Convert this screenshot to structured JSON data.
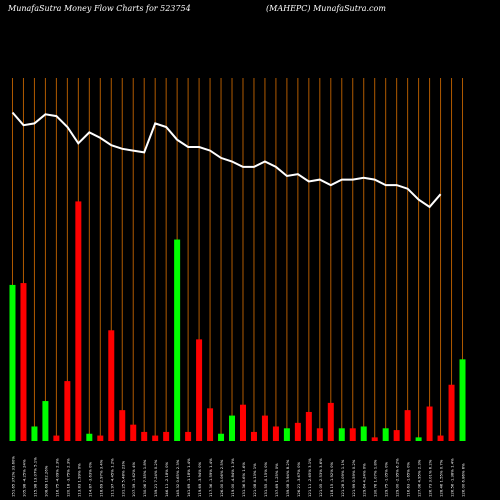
{
  "header": {
    "left": "MunafaSutra  Money Flow  Charts for 523754",
    "right": "(MAHEPC) MunafaSutra.com"
  },
  "colors": {
    "background": "#000000",
    "gridline": "#b05a00",
    "up_bar": "#00ff00",
    "down_bar": "#ff0000",
    "line": "#ffffff",
    "axis_text": "#ffffff"
  },
  "chart_data": {
    "type": "bar",
    "title": "",
    "xlabel": "",
    "ylabel": "",
    "ylim": [
      0,
      100
    ],
    "line_ylim": [
      0,
      100
    ],
    "grid": true,
    "categories": [
      "",
      "",
      "",
      "",
      "",
      "",
      "",
      "",
      "",
      "",
      "",
      "",
      "",
      "",
      "",
      "",
      "",
      "",
      "",
      "",
      "",
      "",
      "",
      "",
      "",
      "",
      "",
      "",
      "",
      "",
      "",
      "",
      "",
      "",
      "",
      "",
      "",
      "",
      "",
      "",
      "",
      ""
    ],
    "series": [
      {
        "type": "bar",
        "values": [
          43,
          43.5,
          4,
          11,
          1.5,
          16.5,
          66,
          2,
          1.5,
          30.5,
          8.5,
          4.5,
          2.5,
          1.5,
          2.5,
          55.5,
          2.5,
          28,
          9,
          2,
          7,
          10,
          2.5,
          7,
          4,
          3.5,
          5,
          8,
          3.5,
          10.5,
          3.5,
          3.5,
          4,
          1,
          3.5,
          3,
          8.5,
          1,
          9.5,
          1.5,
          15.5,
          22.5
        ],
        "colors": [
          "up",
          "down",
          "up",
          "up",
          "down",
          "down",
          "down",
          "up",
          "down",
          "down",
          "down",
          "down",
          "down",
          "down",
          "down",
          "up",
          "down",
          "down",
          "down",
          "up",
          "up",
          "down",
          "down",
          "down",
          "down",
          "up",
          "down",
          "down",
          "down",
          "down",
          "up",
          "down",
          "up",
          "down",
          "up",
          "down",
          "down",
          "up",
          "down",
          "down",
          "down",
          "up"
        ]
      },
      {
        "type": "line",
        "values": [
          90.5,
          87,
          87.5,
          90,
          89.5,
          86.5,
          82,
          85,
          83.5,
          81.5,
          80.5,
          80,
          79.5,
          87.5,
          86.5,
          83,
          81,
          81,
          80,
          78,
          77,
          75.5,
          75.5,
          77,
          75.5,
          73,
          73.5,
          71.5,
          72,
          70.5,
          72,
          72,
          72.5,
          72,
          70.5,
          70.5,
          69.5,
          66.5,
          64.5,
          68,
          null,
          null
        ]
      }
    ],
    "tick_labels": [
      "151.65 372% 33.60%",
      "105.98 -4.25% 24%",
      "115.98 13.07% 5.1%",
      "108.69 102.26%",
      "116.75 -4.09% 2.3%",
      "120.18 -3.75% 2.3%",
      "113.83 1.99% 0%",
      "114.87 -3.63% 0%",
      "118.69 2.97% 3.4%",
      "111.97 -4.45% 1.2%",
      "131.25 5.48% 23%",
      "107.39 -1.62% 4%",
      "130.06 7.35% 1.8%",
      "139.21 7.24% 0.2%",
      "146.11 -2.18% 0%",
      "145.32 0.65% 2.3%",
      "141.69 -1.18% 1.4%",
      "119.69 -3.94% 0%",
      "117.36 -1.59% 1.4%",
      "126.00 3.06% 2.5%",
      "119.00 -4.84% 1.3%",
      "131.36 5.6% 1.6%",
      "121.08 4.13% 1%",
      "131.55 -0.15% 0%",
      "137.69 1.25% 0%",
      "139.08 3.94% 8.2%",
      "126.21 -3.67% 0%",
      "121.11 -2.65% 3.1%",
      "121.05 -2.53% 3.6%",
      "118.15 -1.92% 0%",
      "121.28 3.09% 1.1%",
      "121.99 0.59% 0.2%",
      "129.64 4.24% 0%",
      "130.76 1.07% 1.8%",
      "129.75 -1.05% 0%",
      "129.00 -2.95% 6.2%",
      "116.63 -1.65% 0%",
      "127.06 4.95% 2.3%",
      "126.73 3.01% 6.2%",
      "128.46 1.55% 0.7%",
      "126.56 -1.38% 1.4%",
      "126.00 6.86% 6%"
    ]
  }
}
